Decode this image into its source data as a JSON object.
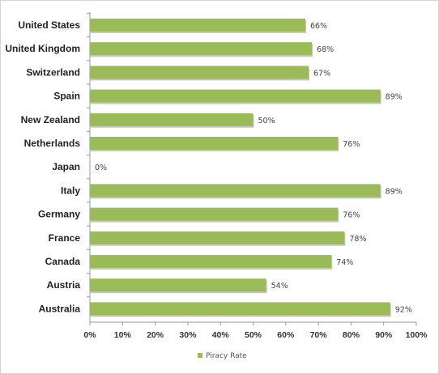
{
  "chart_data": {
    "type": "bar",
    "orientation": "horizontal",
    "categories": [
      "United States",
      "United Kingdom",
      "Switzerland",
      "Spain",
      "New Zealand",
      "Netherlands",
      "Japan",
      "Italy",
      "Germany",
      "France",
      "Canada",
      "Austria",
      "Australia"
    ],
    "series": [
      {
        "name": "Piracy Rate",
        "values": [
          66,
          68,
          67,
          89,
          50,
          76,
          0,
          89,
          76,
          78,
          74,
          54,
          92
        ],
        "color": "#9bbb59"
      }
    ],
    "data_labels": [
      "66%",
      "68%",
      "67%",
      "89%",
      "50%",
      "76%",
      "0%",
      "89%",
      "76%",
      "78%",
      "74%",
      "54%",
      "92%"
    ],
    "x_ticks": [
      "0%",
      "10%",
      "20%",
      "30%",
      "40%",
      "50%",
      "60%",
      "70%",
      "80%",
      "90%",
      "100%"
    ],
    "xlim": [
      0,
      100
    ],
    "title": "",
    "xlabel": "",
    "ylabel": "",
    "grid": false,
    "legend": {
      "position": "bottom",
      "entries": [
        "Piracy Rate"
      ]
    }
  }
}
